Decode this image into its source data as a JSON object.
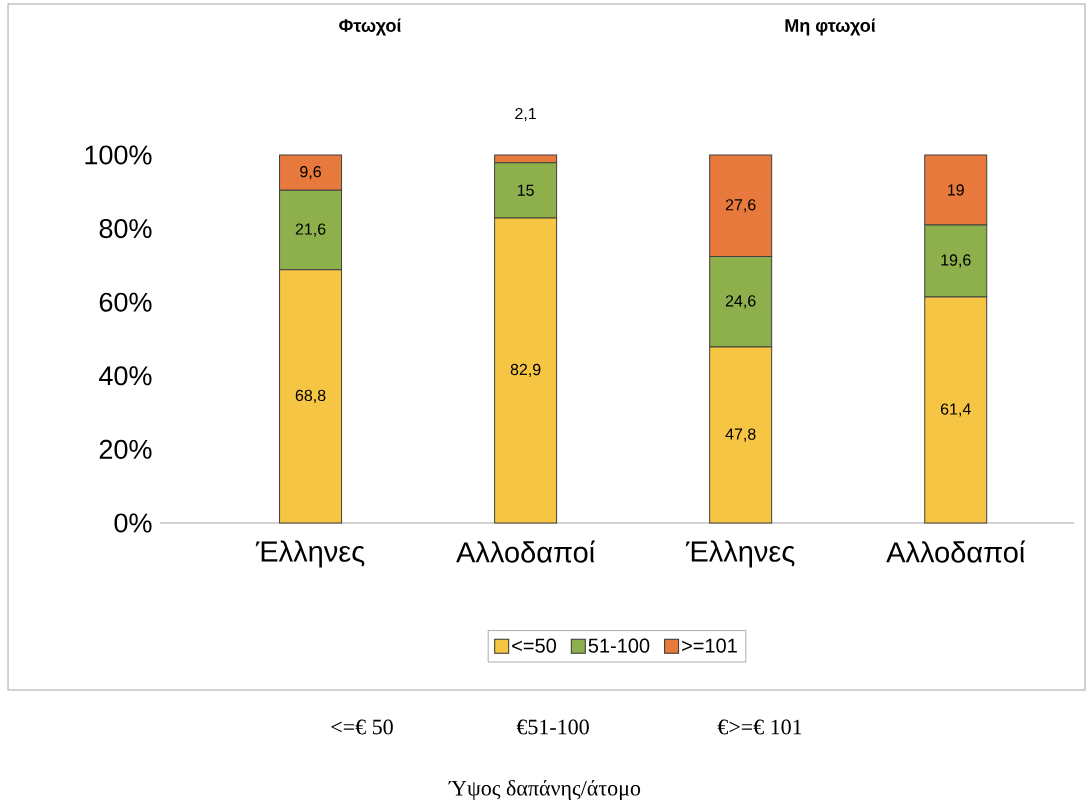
{
  "chart_data": {
    "type": "bar",
    "stacked": true,
    "categories": [
      "Έλληνες",
      "Αλλοδαποί",
      "Έλληνες",
      "Αλλοδαποί"
    ],
    "series": [
      {
        "name": "<=50",
        "color": "#f6c544",
        "values": [
          68.8,
          82.9,
          47.8,
          61.4
        ],
        "value_labels": [
          "68,8",
          "82,9",
          "47,8",
          "61,4"
        ]
      },
      {
        "name": "51-100",
        "color": "#8db04c",
        "values": [
          21.6,
          15,
          24.6,
          19.6
        ],
        "value_labels": [
          "21,6",
          "15",
          "24,6",
          "19,6"
        ]
      },
      {
        "name": ">=101",
        "color": "#e8793c",
        "values": [
          9.6,
          2.1,
          27.6,
          19
        ],
        "value_labels": [
          "9,6",
          "2,1",
          "27,6",
          "19"
        ]
      }
    ],
    "ylim": [
      0,
      100
    ],
    "yticks": [
      {
        "value": 0,
        "label": "0%"
      },
      {
        "value": 20,
        "label": "20%"
      },
      {
        "value": 40,
        "label": "40%"
      },
      {
        "value": 60,
        "label": "60%"
      },
      {
        "value": 80,
        "label": "80%"
      },
      {
        "value": 100,
        "label": "100%"
      }
    ],
    "legend": "bottom",
    "annotations": [
      "Φτωχοί",
      "Μη φτωχοί",
      "<=€ 50",
      "€51-100",
      "€>=€ 101",
      "Ύψος δαπάνης/άτομο"
    ]
  }
}
